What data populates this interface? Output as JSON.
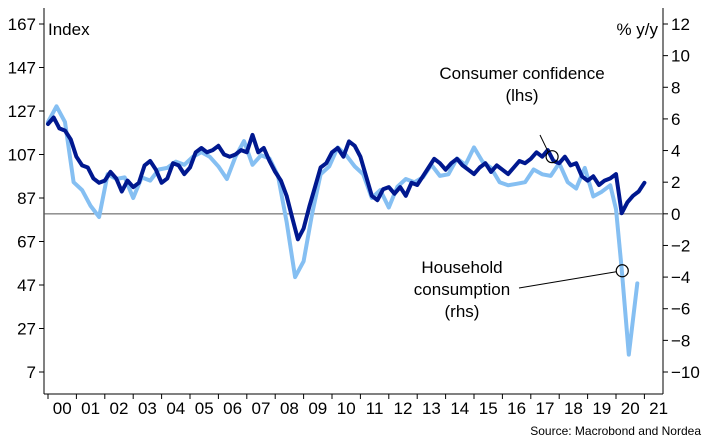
{
  "chart_data": {
    "type": "line",
    "left_axis_label": "Index",
    "right_axis_label": "% y/y",
    "source": "Source: Macrobond and Nordea",
    "left_ticks": [
      167,
      147,
      127,
      107,
      87,
      67,
      47,
      27,
      7
    ],
    "right_ticks": [
      12,
      10,
      8,
      6,
      4,
      2,
      0,
      -2,
      -4,
      -6,
      -8,
      -10
    ],
    "x_ticks": [
      "00",
      "01",
      "02",
      "03",
      "04",
      "05",
      "06",
      "07",
      "08",
      "09",
      "10",
      "11",
      "12",
      "13",
      "14",
      "15",
      "16",
      "17",
      "18",
      "19",
      "20",
      "21"
    ],
    "ylim_left": [
      7,
      167
    ],
    "ylim_right": [
      -10,
      12
    ],
    "xlim": [
      2000.0,
      2021.2
    ],
    "annotations": [
      {
        "lines": [
          "Consumer confidence",
          "(lhs)"
        ],
        "series": "Consumer confidence (lhs)"
      },
      {
        "lines": [
          "Household",
          "consumption",
          "(rhs)"
        ],
        "series": "Household consumption (rhs)"
      }
    ],
    "series": [
      {
        "name": "Consumer confidence (lhs)",
        "color": "#00188f",
        "axis": "left",
        "points": [
          [
            2000.0,
            121
          ],
          [
            2000.2,
            124
          ],
          [
            2000.4,
            119
          ],
          [
            2000.6,
            118
          ],
          [
            2000.8,
            114
          ],
          [
            2001.0,
            106
          ],
          [
            2001.2,
            102
          ],
          [
            2001.4,
            101
          ],
          [
            2001.6,
            96
          ],
          [
            2001.8,
            94
          ],
          [
            2002.0,
            95
          ],
          [
            2002.2,
            99
          ],
          [
            2002.4,
            96
          ],
          [
            2002.6,
            90
          ],
          [
            2002.8,
            95
          ],
          [
            2003.0,
            92
          ],
          [
            2003.2,
            94
          ],
          [
            2003.4,
            102
          ],
          [
            2003.6,
            104
          ],
          [
            2003.8,
            100
          ],
          [
            2004.0,
            94
          ],
          [
            2004.2,
            96
          ],
          [
            2004.4,
            103
          ],
          [
            2004.6,
            102
          ],
          [
            2004.8,
            98
          ],
          [
            2005.0,
            101
          ],
          [
            2005.2,
            108
          ],
          [
            2005.4,
            110
          ],
          [
            2005.6,
            108
          ],
          [
            2005.8,
            109
          ],
          [
            2006.0,
            111
          ],
          [
            2006.2,
            107
          ],
          [
            2006.4,
            106
          ],
          [
            2006.6,
            107
          ],
          [
            2006.8,
            109
          ],
          [
            2007.0,
            108
          ],
          [
            2007.2,
            116
          ],
          [
            2007.4,
            108
          ],
          [
            2007.6,
            110
          ],
          [
            2007.8,
            104
          ],
          [
            2008.0,
            99
          ],
          [
            2008.2,
            95
          ],
          [
            2008.4,
            88
          ],
          [
            2008.6,
            78
          ],
          [
            2008.8,
            68
          ],
          [
            2009.0,
            73
          ],
          [
            2009.2,
            83
          ],
          [
            2009.4,
            92
          ],
          [
            2009.6,
            101
          ],
          [
            2009.8,
            103
          ],
          [
            2010.0,
            108
          ],
          [
            2010.2,
            110
          ],
          [
            2010.4,
            106
          ],
          [
            2010.6,
            113
          ],
          [
            2010.8,
            111
          ],
          [
            2011.0,
            106
          ],
          [
            2011.2,
            97
          ],
          [
            2011.4,
            88
          ],
          [
            2011.6,
            86
          ],
          [
            2011.8,
            91
          ],
          [
            2012.0,
            92
          ],
          [
            2012.2,
            89
          ],
          [
            2012.4,
            92
          ],
          [
            2012.6,
            88
          ],
          [
            2012.8,
            94
          ],
          [
            2013.0,
            93
          ],
          [
            2013.2,
            97
          ],
          [
            2013.4,
            101
          ],
          [
            2013.6,
            105
          ],
          [
            2013.8,
            103
          ],
          [
            2014.0,
            100
          ],
          [
            2014.2,
            103
          ],
          [
            2014.4,
            105
          ],
          [
            2014.6,
            102
          ],
          [
            2014.8,
            100
          ],
          [
            2015.0,
            98
          ],
          [
            2015.2,
            101
          ],
          [
            2015.4,
            103
          ],
          [
            2015.6,
            99
          ],
          [
            2015.8,
            102
          ],
          [
            2016.0,
            100
          ],
          [
            2016.2,
            98
          ],
          [
            2016.4,
            101
          ],
          [
            2016.6,
            104
          ],
          [
            2016.8,
            103
          ],
          [
            2017.0,
            105
          ],
          [
            2017.2,
            108
          ],
          [
            2017.4,
            106
          ],
          [
            2017.6,
            109
          ],
          [
            2017.8,
            104
          ],
          [
            2018.0,
            103
          ],
          [
            2018.2,
            106
          ],
          [
            2018.4,
            102
          ],
          [
            2018.6,
            103
          ],
          [
            2018.8,
            97
          ],
          [
            2019.0,
            95
          ],
          [
            2019.2,
            97
          ],
          [
            2019.4,
            93
          ],
          [
            2019.6,
            95
          ],
          [
            2019.8,
            96
          ],
          [
            2020.0,
            98
          ],
          [
            2020.2,
            80
          ],
          [
            2020.4,
            85
          ],
          [
            2020.6,
            88
          ],
          [
            2020.8,
            90
          ],
          [
            2021.0,
            94
          ]
        ]
      },
      {
        "name": "Household consumption (rhs)",
        "color": "#85bff2",
        "axis": "right",
        "points": [
          [
            2000.0,
            5.8
          ],
          [
            2000.3,
            6.8
          ],
          [
            2000.6,
            5.8
          ],
          [
            2000.9,
            2.0
          ],
          [
            2001.2,
            1.5
          ],
          [
            2001.5,
            0.5
          ],
          [
            2001.8,
            -0.2
          ],
          [
            2002.1,
            2.5
          ],
          [
            2002.4,
            2.2
          ],
          [
            2002.7,
            2.3
          ],
          [
            2003.0,
            1.0
          ],
          [
            2003.3,
            2.3
          ],
          [
            2003.6,
            2.1
          ],
          [
            2003.9,
            2.8
          ],
          [
            2004.2,
            2.9
          ],
          [
            2004.5,
            3.3
          ],
          [
            2004.8,
            3.1
          ],
          [
            2005.1,
            3.6
          ],
          [
            2005.4,
            3.9
          ],
          [
            2005.7,
            3.6
          ],
          [
            2006.0,
            3.0
          ],
          [
            2006.3,
            2.2
          ],
          [
            2006.6,
            3.6
          ],
          [
            2006.9,
            4.6
          ],
          [
            2007.2,
            3.1
          ],
          [
            2007.5,
            3.7
          ],
          [
            2007.8,
            3.5
          ],
          [
            2008.1,
            2.4
          ],
          [
            2008.4,
            -0.5
          ],
          [
            2008.7,
            -4.0
          ],
          [
            2009.0,
            -3.0
          ],
          [
            2009.3,
            0.0
          ],
          [
            2009.6,
            2.5
          ],
          [
            2009.9,
            3.0
          ],
          [
            2010.2,
            4.2
          ],
          [
            2010.5,
            3.7
          ],
          [
            2010.8,
            3.0
          ],
          [
            2011.1,
            2.5
          ],
          [
            2011.4,
            1.0
          ],
          [
            2011.7,
            1.5
          ],
          [
            2012.0,
            0.4
          ],
          [
            2012.3,
            1.7
          ],
          [
            2012.6,
            2.2
          ],
          [
            2012.9,
            2.0
          ],
          [
            2013.2,
            2.3
          ],
          [
            2013.5,
            3.1
          ],
          [
            2013.8,
            2.4
          ],
          [
            2014.1,
            2.5
          ],
          [
            2014.4,
            3.5
          ],
          [
            2014.7,
            3.1
          ],
          [
            2015.0,
            4.2
          ],
          [
            2015.3,
            3.3
          ],
          [
            2015.6,
            2.9
          ],
          [
            2015.9,
            2.0
          ],
          [
            2016.2,
            1.8
          ],
          [
            2016.5,
            1.9
          ],
          [
            2016.8,
            2.0
          ],
          [
            2017.1,
            2.8
          ],
          [
            2017.4,
            2.5
          ],
          [
            2017.7,
            2.4
          ],
          [
            2018.0,
            3.2
          ],
          [
            2018.3,
            2.0
          ],
          [
            2018.6,
            1.6
          ],
          [
            2018.9,
            2.9
          ],
          [
            2019.2,
            1.1
          ],
          [
            2019.5,
            1.4
          ],
          [
            2019.8,
            1.8
          ],
          [
            2020.0,
            0.3
          ],
          [
            2020.2,
            -3.5
          ],
          [
            2020.45,
            -8.9
          ],
          [
            2020.75,
            -4.4
          ]
        ]
      }
    ]
  }
}
